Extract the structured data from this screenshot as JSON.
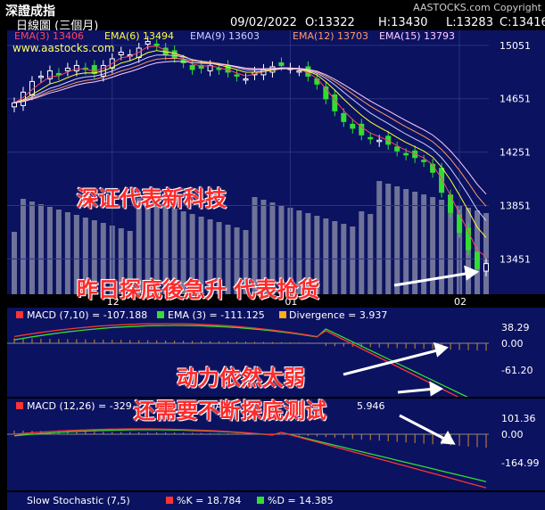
{
  "header": {
    "title": "深證成指",
    "copyright": "AASTOCKS.com Copyright",
    "period": "日線圖 (三個月)",
    "date": "09/02/2022",
    "open": "O:13322",
    "high": "H:13430",
    "low": "L:13283",
    "close": "C:13416"
  },
  "main_panel": {
    "ema_labels": [
      {
        "text": "EMA(3) 13406",
        "color": "#ff4466"
      },
      {
        "text": "EMA(6) 13494",
        "color": "#ffff33"
      },
      {
        "text": "EMA(9) 13603",
        "color": "#cfcfff"
      },
      {
        "text": "EMA(12) 13703",
        "color": "#ff9966"
      },
      {
        "text": "EMA(15) 13793",
        "color": "#ffccff"
      }
    ],
    "watermark": "www.aastocks.com",
    "y_ticks": [
      "15051",
      "14651",
      "14251",
      "13851",
      "13451"
    ],
    "x_ticks": [
      "12",
      "01",
      "02"
    ]
  },
  "macd1": {
    "label": "MACD (7,10) = -107.188",
    "ema": "EMA (3) = -111.125",
    "div": "Divergence = 3.937",
    "y_ticks": [
      "38.29",
      "0.00",
      "-61.20"
    ]
  },
  "macd2": {
    "label": "MACD (12,26) = -329.",
    "ema": "MA",
    "div": "5.946",
    "y_ticks": [
      "101.36",
      "0.00",
      "-164.99"
    ]
  },
  "stoch": {
    "label": "Slow Stochastic (7,5)",
    "k": "%K = 18.784",
    "d": "%D = 14.385"
  },
  "overlays": {
    "t1": "深证代表新科技",
    "t2": "昨日探底後急升  代表抢货",
    "t3": "动力依然太弱",
    "t4": "还需要不断探底测试"
  },
  "chart_data": {
    "type": "line",
    "title": "深證成指",
    "series": [
      {
        "name": "EMA(3)",
        "values": [
          13406
        ]
      },
      {
        "name": "EMA(6)",
        "values": [
          13494
        ]
      },
      {
        "name": "EMA(9)",
        "values": [
          13603
        ]
      },
      {
        "name": "EMA(12)",
        "values": [
          13703
        ]
      },
      {
        "name": "EMA(15)",
        "values": [
          13793
        ]
      }
    ],
    "close_path": [
      14620,
      14700,
      14780,
      14820,
      14860,
      14830,
      14880,
      14900,
      14870,
      14840,
      14900,
      14950,
      15000,
      14980,
      15030,
      15080,
      15050,
      14980,
      14960,
      14920,
      14870,
      14880,
      14900,
      14870,
      14850,
      14820,
      14800,
      14850,
      14870,
      14890,
      14900,
      14880,
      14860,
      14820,
      14760,
      14650,
      14560,
      14480,
      14430,
      14380,
      14350,
      14340,
      14310,
      14260,
      14230,
      14210,
      14180,
      14100,
      13950,
      13800,
      13650,
      13520,
      13380,
      13416
    ],
    "ylim": [
      13200,
      15150
    ],
    "ytick_values": [
      15051,
      14651,
      14251,
      13851,
      13451
    ],
    "xticks": [
      "12",
      "01",
      "02"
    ],
    "xtick_index": [
      11,
      31,
      50
    ]
  }
}
